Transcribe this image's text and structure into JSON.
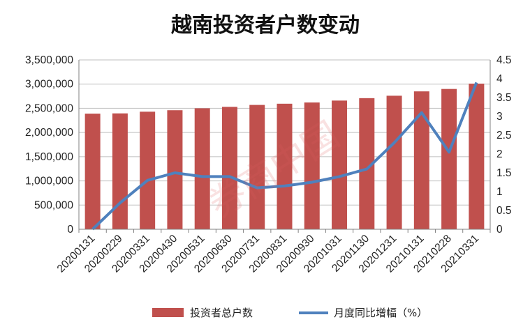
{
  "chart_data": {
    "type": "bar",
    "title": "越南投资者户数变动",
    "categories": [
      "20200131",
      "20200229",
      "20200331",
      "20200430",
      "20200531",
      "20200630",
      "20200731",
      "20200831",
      "20200930",
      "20201031",
      "20201130",
      "20201231",
      "20210131",
      "20210228",
      "20210331"
    ],
    "series": [
      {
        "name": "投资者总户数",
        "type": "bar",
        "axis": "left",
        "color": "#c0504d",
        "values": [
          2390000,
          2395000,
          2430000,
          2460000,
          2500000,
          2530000,
          2570000,
          2595000,
          2620000,
          2660000,
          2710000,
          2760000,
          2850000,
          2900000,
          3010000
        ]
      },
      {
        "name": "月度同比增幅（%）",
        "type": "line",
        "axis": "right",
        "color": "#4f81bd",
        "values": [
          0.0,
          0.7,
          1.3,
          1.5,
          1.4,
          1.4,
          1.1,
          1.15,
          1.25,
          1.4,
          1.6,
          2.3,
          3.1,
          2.05,
          3.9
        ]
      }
    ],
    "y_left": {
      "ylim": [
        0,
        3500000
      ],
      "ticks": [
        "0",
        "500,000",
        "1,000,000",
        "1,500,000",
        "2,000,000",
        "2,500,000",
        "3,000,000",
        "3,500,000"
      ]
    },
    "y_right": {
      "ylim": [
        0,
        4.5
      ],
      "ticks": [
        "0",
        "0.5",
        "1",
        "1.5",
        "2",
        "2.5",
        "3",
        "3.5",
        "4",
        "4.5"
      ]
    },
    "grid": true,
    "legend": "bottom",
    "watermark": "券商中国"
  }
}
